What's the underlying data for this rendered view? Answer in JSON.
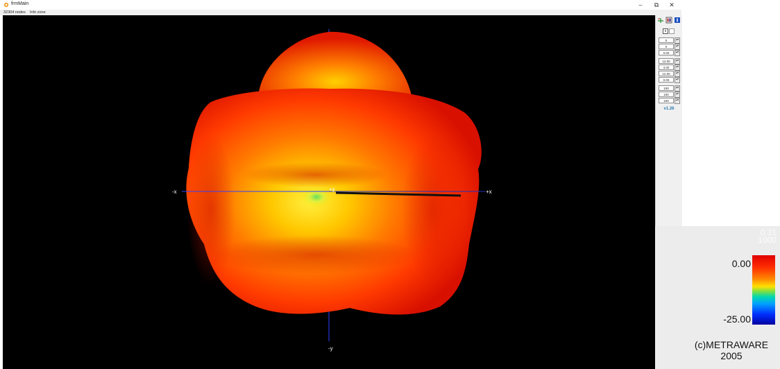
{
  "window": {
    "title": "frmMain",
    "controls": {
      "minimize": "–",
      "restore": "⧉",
      "close": "✕"
    }
  },
  "status": {
    "nodes": "32304 nodes",
    "info": "Info zone"
  },
  "viewport": {
    "axes": {
      "neg_x": "-x",
      "pos_x": "+x",
      "pos_z": "+z",
      "neg_y": "-y"
    }
  },
  "panel": {
    "group_a": [
      "0",
      "0",
      "0.00"
    ],
    "group_b": [
      "12.00",
      "4.00",
      "12.00",
      "0.00"
    ],
    "group_c": [
      "100",
      "100",
      "100"
    ],
    "version": "v1.26"
  },
  "legend": {
    "ghost": "0.31\n1000",
    "max": "0.00",
    "min": "-25.00",
    "copyright_line1": "(c)METRAWARE",
    "copyright_line2": "2005"
  },
  "colors": {
    "background": "#000000",
    "surface_red": "#e01a00",
    "surface_yellow": "#ffe000",
    "accent_version": "#2a7ab0"
  }
}
